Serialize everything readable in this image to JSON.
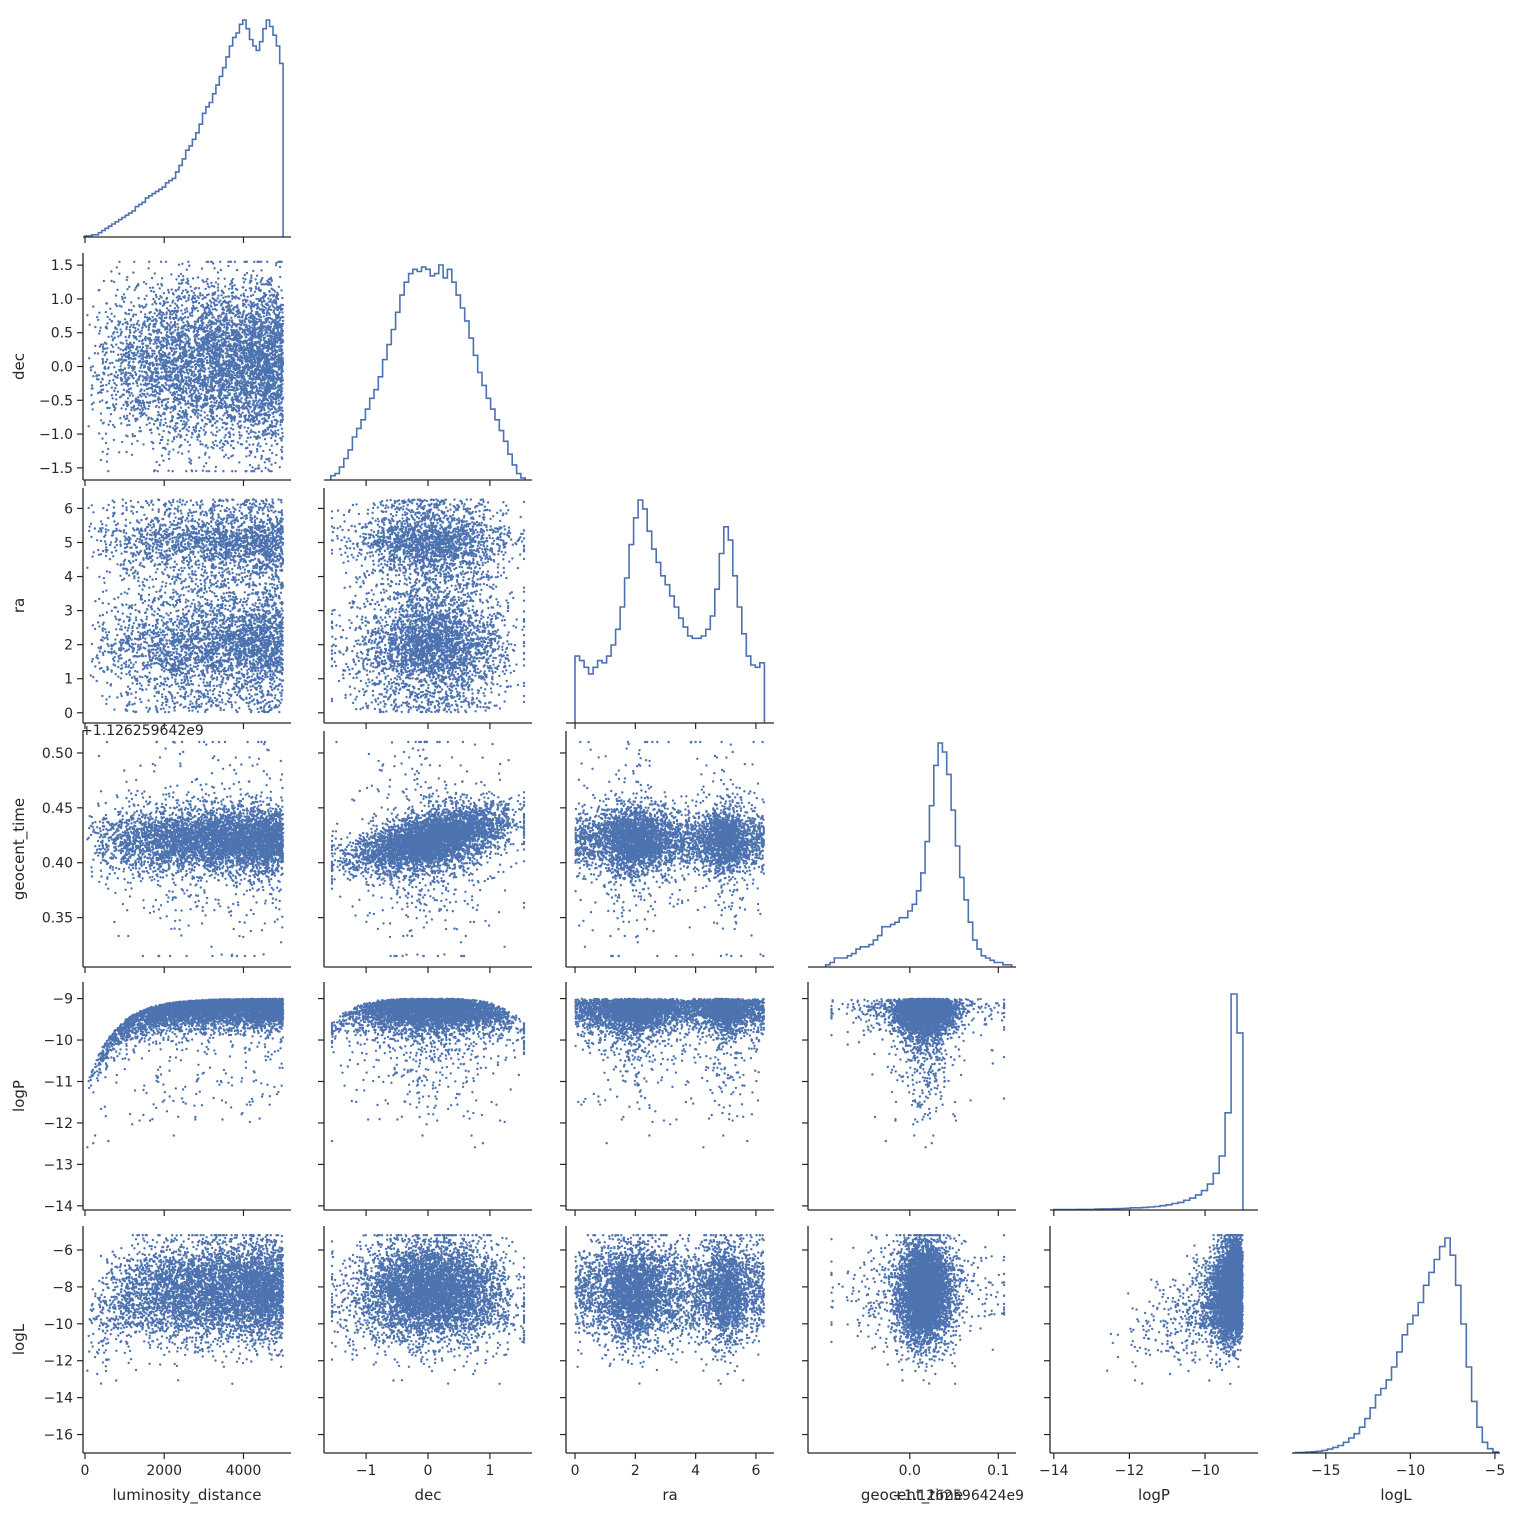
{
  "chart_data": {
    "type": "scatter",
    "layout": "corner-plot",
    "variables": [
      "luminosity_distance",
      "dec",
      "ra",
      "geocent_time",
      "logP",
      "logL"
    ],
    "offset_labels": {
      "geocent_time_y": "+1.126259642e9",
      "geocent_time_x": "+1.1262596424e9"
    },
    "ranges": {
      "luminosity_distance": [
        -50,
        5200
      ],
      "dec": [
        -1.68,
        1.68
      ],
      "ra": [
        -0.3,
        6.6
      ],
      "geocent_time": [
        -0.115,
        0.12
      ],
      "logP": [
        -14.1,
        -8.6
      ],
      "logL": [
        -17.0,
        -4.7
      ]
    },
    "geocent_time_y_range": [
      0.305,
      0.52
    ],
    "ticks": {
      "luminosity_distance": [
        0,
        2000,
        4000
      ],
      "dec_x": [
        -1,
        0,
        1
      ],
      "dec_y": [
        -1.5,
        -1.0,
        -0.5,
        0.0,
        0.5,
        1.0,
        1.5
      ],
      "ra_x": [
        0,
        2,
        4,
        6
      ],
      "ra_y": [
        0,
        1,
        2,
        3,
        4,
        5,
        6
      ],
      "geocent_time_y": [
        0.35,
        0.4,
        0.45,
        0.5
      ],
      "geocent_time_x": [
        0.0,
        0.1
      ],
      "logP_y": [
        -14,
        -13,
        -12,
        -11,
        -10,
        -9
      ],
      "logP_x": [
        -14,
        -12,
        -10
      ],
      "logL_y": [
        -16,
        -14,
        -12,
        -10,
        -8,
        -6
      ],
      "logL_x": [
        -15,
        -10,
        -5
      ]
    },
    "tick_labels": {
      "luminosity_distance": [
        "0",
        "2000",
        "4000"
      ],
      "dec_x": [
        "−1",
        "0",
        "1"
      ],
      "dec_y": [
        "−1.5",
        "−1.0",
        "−0.5",
        "0.0",
        "0.5",
        "1.0",
        "1.5"
      ],
      "ra_x": [
        "0",
        "2",
        "4",
        "6"
      ],
      "ra_y": [
        "0",
        "1",
        "2",
        "3",
        "4",
        "5",
        "6"
      ],
      "geocent_time_y": [
        "0.35",
        "0.40",
        "0.45",
        "0.50"
      ],
      "geocent_time_x": [
        "0.0",
        "0.1"
      ],
      "logP_y": [
        "−14",
        "−13",
        "−12",
        "−11",
        "−10",
        "−9"
      ],
      "logP_x": [
        "−14",
        "−12",
        "−10"
      ],
      "logL_y": [
        "−16",
        "−14",
        "−12",
        "−10",
        "−8",
        "−6"
      ],
      "logL_x": [
        "−15",
        "−10",
        "−5"
      ]
    },
    "axis_labels": {
      "x": [
        "luminosity_distance",
        "dec",
        "ra",
        "geocent_time",
        "logP",
        "logL"
      ],
      "y": [
        "dec",
        "ra",
        "geocent_time",
        "logP",
        "logL"
      ]
    },
    "histograms": {
      "luminosity_distance": {
        "bin_range": [
          0,
          5000
        ],
        "heights": [
          0.5,
          0.5,
          1,
          1,
          2,
          3,
          4,
          5,
          6,
          7,
          8,
          9,
          10,
          11,
          12,
          14,
          15,
          16,
          18,
          19,
          20,
          21,
          22,
          23,
          25,
          26,
          27,
          30,
          33,
          36,
          40,
          42,
          45,
          48,
          52,
          57,
          60,
          62,
          66,
          70,
          74,
          78,
          83,
          88,
          92,
          94,
          98,
          100,
          96,
          91,
          88,
          86,
          90,
          96,
          100,
          97,
          93,
          88,
          80
        ]
      },
      "dec": {
        "bin_range": [
          -1.57,
          1.57
        ],
        "heights": [
          2,
          3,
          6,
          10,
          14,
          20,
          24,
          28,
          33,
          38,
          42,
          48,
          56,
          63,
          70,
          78,
          86,
          92,
          96,
          98,
          97,
          99,
          98,
          95,
          96,
          100,
          94,
          98,
          92,
          86,
          80,
          74,
          66,
          58,
          50,
          44,
          38,
          33,
          28,
          23,
          18,
          12,
          7,
          3,
          1
        ]
      },
      "ra": {
        "bin_range": [
          0,
          6.28
        ],
        "heights": [
          30,
          28,
          25,
          22,
          25,
          28,
          27,
          30,
          35,
          42,
          52,
          65,
          80,
          92,
          100,
          96,
          86,
          78,
          72,
          66,
          62,
          57,
          52,
          47,
          43,
          39,
          38,
          38,
          39,
          42,
          48,
          60,
          76,
          88,
          82,
          66,
          52,
          40,
          30,
          26,
          25,
          27
        ]
      },
      "geocent_time": {
        "bin_range": [
          -0.095,
          0.115
        ],
        "heights": [
          1,
          2,
          4,
          4,
          4,
          5,
          6,
          8,
          9,
          9,
          10,
          12,
          14,
          18,
          18,
          19,
          20,
          22,
          22,
          25,
          28,
          34,
          42,
          56,
          72,
          90,
          100,
          96,
          86,
          70,
          54,
          40,
          30,
          20,
          12,
          8,
          5,
          4,
          3,
          2,
          2,
          1,
          1
        ]
      },
      "logP": {
        "bin_range": [
          -14,
          -9
        ],
        "heights": [
          0.2,
          0.2,
          0.2,
          0.2,
          0.3,
          0.3,
          0.3,
          0.4,
          0.5,
          0.5,
          0.6,
          0.7,
          0.8,
          1,
          1,
          1.2,
          1.4,
          1.6,
          2,
          2.4,
          3,
          3.5,
          4.5,
          5.5,
          7,
          9,
          12,
          17,
          25,
          45,
          100,
          82
        ]
      },
      "logL": {
        "bin_range": [
          -16.8,
          -4.8
        ],
        "heights": [
          0.2,
          0.3,
          0.4,
          0.6,
          0.8,
          1.2,
          1.8,
          2.6,
          3.5,
          5,
          7,
          9,
          12,
          16,
          21,
          27,
          30,
          34,
          40,
          47,
          55,
          60,
          64,
          70,
          78,
          84,
          90,
          96,
          100,
          92,
          78,
          60,
          40,
          24,
          12,
          5,
          2,
          0.5
        ]
      }
    },
    "title": "",
    "xlabel": "",
    "ylabel": "",
    "colors": {
      "marker": "#4c72b0",
      "hist": "#4c72b0",
      "axis": "#262626"
    },
    "grid": false
  }
}
